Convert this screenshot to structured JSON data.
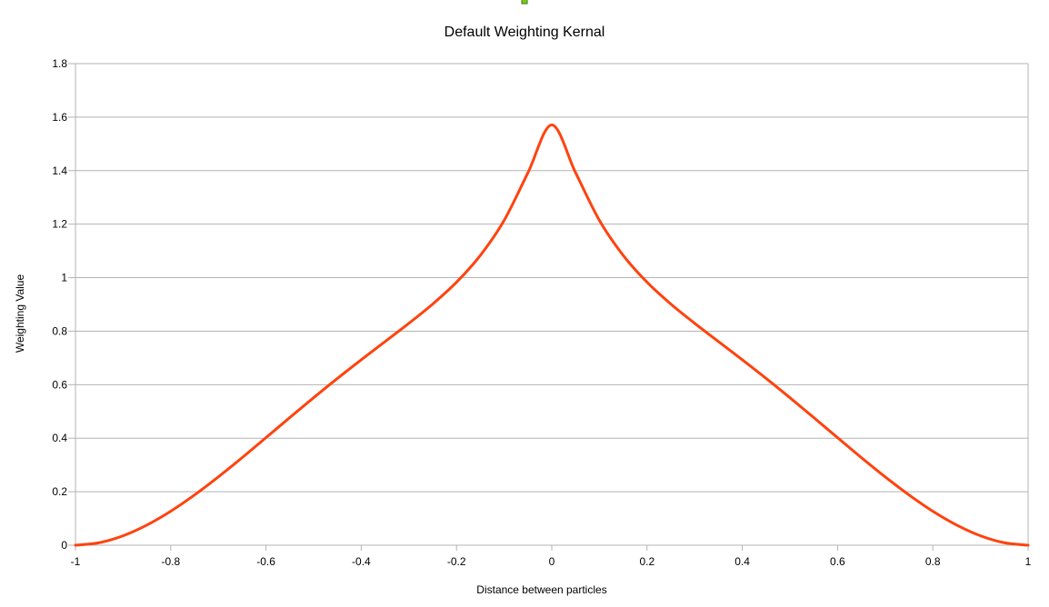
{
  "chart_data": {
    "type": "line",
    "title": "Default Weighting Kernal",
    "xlabel": "Distance between particles",
    "ylabel": "Weighting Value",
    "xlim": [
      -1,
      1
    ],
    "ylim": [
      0,
      1.8
    ],
    "x_ticks": [
      "-1",
      "-0.8",
      "-0.6",
      "-0.4",
      "-0.2",
      "0",
      "0.2",
      "0.4",
      "0.6",
      "0.8",
      "1"
    ],
    "y_ticks": [
      "0",
      "0.2",
      "0.4",
      "0.6",
      "0.8",
      "1",
      "1.2",
      "1.4",
      "1.6",
      "1.8"
    ],
    "grid": "horizontal",
    "legend": "none",
    "series": [
      {
        "color": "#ff420e",
        "x": [
          -1,
          -0.95,
          -0.9,
          -0.85,
          -0.8,
          -0.75,
          -0.7,
          -0.65,
          -0.6,
          -0.55,
          -0.5,
          -0.45,
          -0.4,
          -0.35,
          -0.3,
          -0.25,
          -0.2,
          -0.15,
          -0.1,
          -0.05,
          0,
          0.05,
          0.1,
          0.15,
          0.2,
          0.25,
          0.3,
          0.35,
          0.4,
          0.45,
          0.5,
          0.55,
          0.6,
          0.65,
          0.7,
          0.75,
          0.8,
          0.85,
          0.9,
          0.95,
          1
        ],
        "y": [
          0,
          0.0093,
          0.0353,
          0.0754,
          0.127,
          0.1878,
          0.2553,
          0.3273,
          0.4019,
          0.4771,
          0.5513,
          0.6234,
          0.6931,
          0.7611,
          0.8294,
          0.9014,
          0.983,
          1.0832,
          1.2142,
          1.3923,
          1.5708,
          1.3923,
          1.2142,
          1.0832,
          0.983,
          0.9014,
          0.8294,
          0.7611,
          0.6931,
          0.6234,
          0.5513,
          0.4771,
          0.4019,
          0.3273,
          0.2553,
          0.1878,
          0.127,
          0.0754,
          0.0353,
          0.0093,
          0
        ]
      }
    ]
  },
  "indicator": {
    "color": "#7ec820"
  }
}
